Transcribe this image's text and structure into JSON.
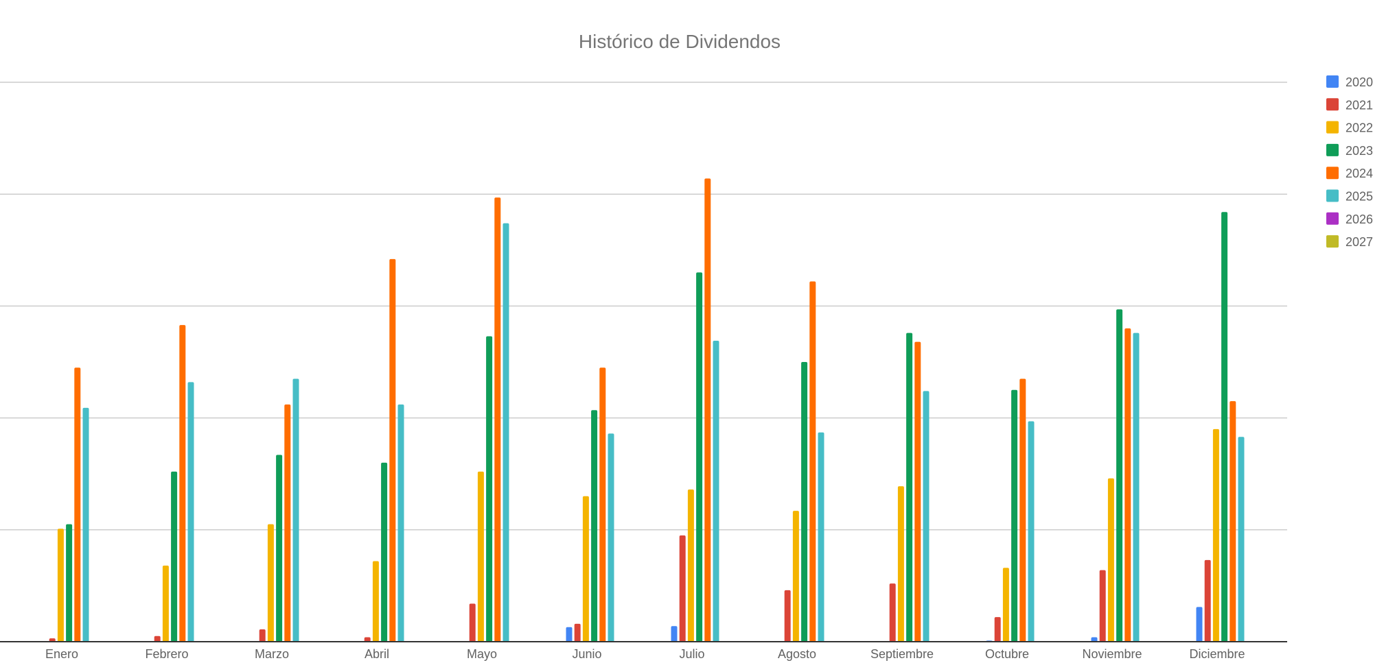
{
  "chart_data": {
    "type": "bar",
    "title": "Histórico de Dividendos",
    "xlabel": "",
    "ylabel": "",
    "ylim": [
      0,
      500
    ],
    "grid": true,
    "legend": "right",
    "categories": [
      "Enero",
      "Febrero",
      "Marzo",
      "Abril",
      "Mayo",
      "Junio",
      "Julio",
      "Agosto",
      "Septiembre",
      "Octubre",
      "Noviembre",
      "Diciembre"
    ],
    "series": [
      {
        "name": "2020",
        "color": "#4285f4",
        "values": [
          0,
          0,
          0.5,
          0,
          0,
          13,
          14,
          0,
          0,
          1,
          4,
          31
        ]
      },
      {
        "name": "2021",
        "color": "#db4437",
        "values": [
          3,
          5,
          11,
          4,
          34,
          16,
          95,
          46,
          52,
          22,
          64,
          73
        ]
      },
      {
        "name": "2022",
        "color": "#f4b400",
        "values": [
          101,
          68,
          105,
          72,
          152,
          130,
          136,
          117,
          139,
          66,
          146,
          190
        ]
      },
      {
        "name": "2023",
        "color": "#0f9d58",
        "values": [
          105,
          152,
          167,
          160,
          273,
          207,
          330,
          250,
          276,
          225,
          297,
          384
        ]
      },
      {
        "name": "2024",
        "color": "#ff6d00",
        "values": [
          245,
          283,
          212,
          342,
          397,
          245,
          414,
          322,
          268,
          235,
          280,
          215
        ]
      },
      {
        "name": "2025",
        "color": "#46bdc6",
        "values": [
          209,
          232,
          235,
          212,
          374,
          186,
          269,
          187,
          224,
          197,
          276,
          183
        ]
      },
      {
        "name": "2026",
        "color": "#ab30c4",
        "values": [
          0,
          0,
          0,
          0,
          0,
          0,
          0,
          0,
          0,
          0,
          0,
          0
        ]
      },
      {
        "name": "2027",
        "color": "#c0ba26",
        "values": [
          0,
          0,
          0,
          0,
          0,
          0,
          0,
          0,
          0,
          0,
          0,
          0
        ]
      }
    ]
  }
}
